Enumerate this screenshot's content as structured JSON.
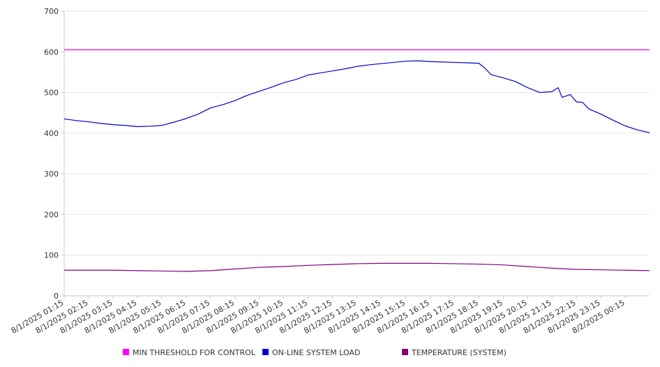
{
  "chart_data": {
    "type": "line",
    "title": "",
    "xlabel": "",
    "ylabel": "",
    "ylim": [
      0,
      700
    ],
    "yticks": [
      0,
      100,
      200,
      300,
      400,
      500,
      600,
      700
    ],
    "grid": true,
    "legend_position": "bottom",
    "x_tick_labels": [
      "8/1/2025 01:15",
      "8/1/2025 02:15",
      "8/1/2025 03:15",
      "8/1/2025 04:15",
      "8/1/2025 05:15",
      "8/1/2025 06:15",
      "8/1/2025 07:15",
      "8/1/2025 08:15",
      "8/1/2025 09:15",
      "8/1/2025 10:15",
      "8/1/2025 11:15",
      "8/1/2025 12:15",
      "8/1/2025 13:15",
      "8/1/2025 14:15",
      "8/1/2025 15:15",
      "8/1/2025 16:15",
      "8/1/2025 17:15",
      "8/1/2025 18:15",
      "8/1/2025 19:15",
      "8/1/2025 20:15",
      "8/1/2025 21:15",
      "8/1/2025 22:15",
      "8/1/2025 23:15",
      "8/2/2025 00:15"
    ],
    "x_range": [
      "8/1/2025 01:15",
      "8/2/2025 01:15"
    ],
    "series": [
      {
        "name": "MIN THRESHOLD FOR CONTROL",
        "color": "#ff00ff",
        "points": [
          [
            "8/1/2025 01:15",
            605
          ],
          [
            "8/2/2025 01:15",
            605
          ]
        ]
      },
      {
        "name": "ON-LINE SYSTEM LOAD",
        "color": "#0000cc",
        "points": [
          [
            "8/1/2025 01:15",
            435
          ],
          [
            "8/1/2025 01:45",
            431
          ],
          [
            "8/1/2025 02:15",
            428
          ],
          [
            "8/1/2025 02:45",
            424
          ],
          [
            "8/1/2025 03:15",
            421
          ],
          [
            "8/1/2025 03:45",
            419
          ],
          [
            "8/1/2025 04:15",
            416
          ],
          [
            "8/1/2025 04:45",
            417
          ],
          [
            "8/1/2025 05:15",
            419
          ],
          [
            "8/1/2025 05:45",
            427
          ],
          [
            "8/1/2025 06:15",
            436
          ],
          [
            "8/1/2025 06:45",
            447
          ],
          [
            "8/1/2025 07:15",
            462
          ],
          [
            "8/1/2025 07:45",
            470
          ],
          [
            "8/1/2025 08:15",
            480
          ],
          [
            "8/1/2025 08:45",
            493
          ],
          [
            "8/1/2025 09:15",
            503
          ],
          [
            "8/1/2025 09:45",
            513
          ],
          [
            "8/1/2025 10:15",
            524
          ],
          [
            "8/1/2025 10:45",
            532
          ],
          [
            "8/1/2025 11:15",
            543
          ],
          [
            "8/1/2025 11:45",
            548
          ],
          [
            "8/1/2025 12:15",
            553
          ],
          [
            "8/1/2025 12:45",
            558
          ],
          [
            "8/1/2025 13:15",
            564
          ],
          [
            "8/1/2025 13:45",
            568
          ],
          [
            "8/1/2025 14:15",
            571
          ],
          [
            "8/1/2025 14:45",
            574
          ],
          [
            "8/1/2025 15:15",
            577
          ],
          [
            "8/1/2025 15:45",
            578
          ],
          [
            "8/1/2025 16:15",
            576
          ],
          [
            "8/1/2025 16:45",
            575
          ],
          [
            "8/1/2025 17:15",
            574
          ],
          [
            "8/1/2025 17:45",
            573
          ],
          [
            "8/1/2025 18:15",
            572
          ],
          [
            "8/1/2025 18:30",
            560
          ],
          [
            "8/1/2025 18:45",
            544
          ],
          [
            "8/1/2025 19:15",
            536
          ],
          [
            "8/1/2025 19:45",
            527
          ],
          [
            "8/1/2025 20:15",
            512
          ],
          [
            "8/1/2025 20:45",
            500
          ],
          [
            "8/1/2025 21:15",
            502
          ],
          [
            "8/1/2025 21:30",
            512
          ],
          [
            "8/1/2025 21:40",
            488
          ],
          [
            "8/1/2025 22:00",
            495
          ],
          [
            "8/1/2025 22:15",
            477
          ],
          [
            "8/1/2025 22:30",
            476
          ],
          [
            "8/1/2025 22:45",
            460
          ],
          [
            "8/1/2025 23:15",
            447
          ],
          [
            "8/1/2025 23:45",
            432
          ],
          [
            "8/2/2025 00:15",
            418
          ],
          [
            "8/2/2025 00:45",
            408
          ],
          [
            "8/2/2025 01:15",
            401
          ]
        ]
      },
      {
        "name": "TEMPERATURE (SYSTEM)",
        "color": "#800080",
        "points": [
          [
            "8/1/2025 01:15",
            63
          ],
          [
            "8/1/2025 03:15",
            63
          ],
          [
            "8/1/2025 04:15",
            62
          ],
          [
            "8/1/2025 05:15",
            61
          ],
          [
            "8/1/2025 06:15",
            60
          ],
          [
            "8/1/2025 07:15",
            62
          ],
          [
            "8/1/2025 08:15",
            66
          ],
          [
            "8/1/2025 09:15",
            70
          ],
          [
            "8/1/2025 10:15",
            72
          ],
          [
            "8/1/2025 11:15",
            75
          ],
          [
            "8/1/2025 12:15",
            77
          ],
          [
            "8/1/2025 13:15",
            79
          ],
          [
            "8/1/2025 14:15",
            80
          ],
          [
            "8/1/2025 15:15",
            80
          ],
          [
            "8/1/2025 16:15",
            80
          ],
          [
            "8/1/2025 17:15",
            79
          ],
          [
            "8/1/2025 18:15",
            78
          ],
          [
            "8/1/2025 19:15",
            76
          ],
          [
            "8/1/2025 20:15",
            72
          ],
          [
            "8/1/2025 21:15",
            68
          ],
          [
            "8/1/2025 22:15",
            65
          ],
          [
            "8/1/2025 23:15",
            64
          ],
          [
            "8/2/2025 00:15",
            63
          ],
          [
            "8/2/2025 01:15",
            62
          ]
        ]
      }
    ]
  }
}
